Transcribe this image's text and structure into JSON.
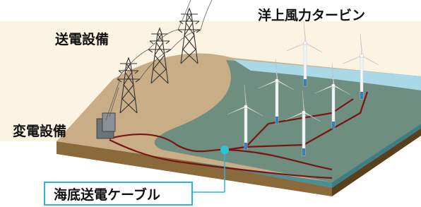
{
  "labels": {
    "transmission": "送電設備",
    "turbines": "洋上風力タービン",
    "substation": "変電設備",
    "cable": "海底送電ケーブル"
  }
}
